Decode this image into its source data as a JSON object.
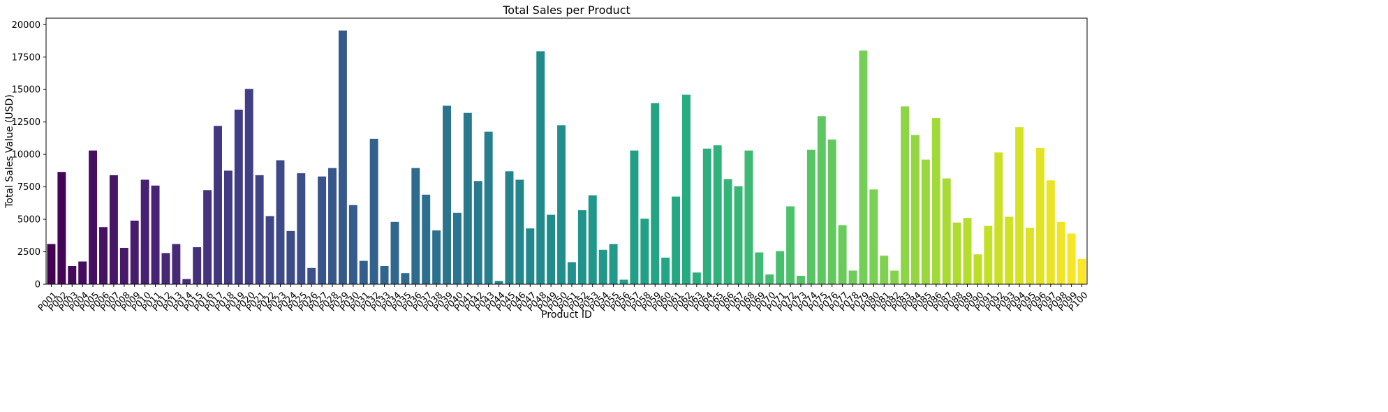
{
  "chart_data": {
    "type": "bar",
    "title": "Total Sales per Product",
    "xlabel": "Product ID",
    "ylabel": "Total Sales Value (USD)",
    "ylim": [
      0,
      20500
    ],
    "yticks": [
      0,
      2500,
      5000,
      7500,
      10000,
      12500,
      15000,
      17500,
      20000
    ],
    "grid": false,
    "colormap": "viridis",
    "categories": [
      "P001",
      "P002",
      "P003",
      "P004",
      "P005",
      "P006",
      "P007",
      "P008",
      "P009",
      "P010",
      "P011",
      "P012",
      "P013",
      "P014",
      "P015",
      "P016",
      "P017",
      "P018",
      "P019",
      "P020",
      "P021",
      "P022",
      "P023",
      "P024",
      "P025",
      "P026",
      "P027",
      "P028",
      "P029",
      "P030",
      "P031",
      "P032",
      "P033",
      "P034",
      "P035",
      "P036",
      "P037",
      "P038",
      "P039",
      "P040",
      "P041",
      "P042",
      "P043",
      "P044",
      "P045",
      "P046",
      "P047",
      "P048",
      "P049",
      "P050",
      "P051",
      "P052",
      "P053",
      "P054",
      "P055",
      "P056",
      "P057",
      "P058",
      "P059",
      "P060",
      "P061",
      "P062",
      "P063",
      "P064",
      "P065",
      "P066",
      "P067",
      "P068",
      "P069",
      "P070",
      "P071",
      "P072",
      "P073",
      "P074",
      "P075",
      "P076",
      "P077",
      "P078",
      "P079",
      "P080",
      "P081",
      "P082",
      "P083",
      "P084",
      "P085",
      "P086",
      "P087",
      "P088",
      "P089",
      "P090",
      "P091",
      "P092",
      "P093",
      "P094",
      "P095",
      "P096",
      "P097",
      "P098",
      "P099",
      "P100"
    ],
    "values": [
      3100,
      8650,
      1400,
      1750,
      10300,
      4400,
      8400,
      2800,
      4900,
      8050,
      7600,
      2400,
      3100,
      400,
      2850,
      7250,
      12200,
      8750,
      13450,
      15050,
      8400,
      5250,
      9550,
      4100,
      8550,
      1250,
      8300,
      8950,
      19550,
      6100,
      1800,
      11200,
      1400,
      4800,
      850,
      8950,
      6900,
      4150,
      13750,
      5500,
      13200,
      7950,
      11750,
      250,
      8700,
      8050,
      4300,
      17950,
      5350,
      12250,
      1700,
      5700,
      6850,
      2650,
      3100,
      350,
      10300,
      5050,
      13950,
      2050,
      6750,
      14600,
      900,
      10450,
      10700,
      8100,
      7550,
      10300,
      2450,
      750,
      2550,
      6000,
      650,
      10350,
      12950,
      11150,
      4550,
      1050,
      18000,
      7300,
      2200,
      1050,
      13700,
      11500,
      9600,
      12800,
      8150,
      4750,
      5100,
      2300,
      4500,
      10150,
      5200,
      12100,
      4350,
      10500,
      8000,
      4800,
      3900,
      1950
    ]
  }
}
